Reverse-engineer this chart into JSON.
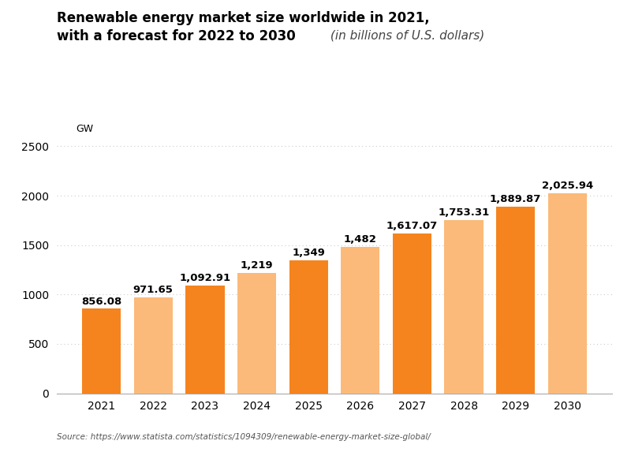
{
  "categories": [
    "2021",
    "2022",
    "2023",
    "2024",
    "2025",
    "2026",
    "2027",
    "2028",
    "2029",
    "2030"
  ],
  "values": [
    856.08,
    971.65,
    1092.91,
    1219,
    1349,
    1482,
    1617.07,
    1753.31,
    1889.87,
    2025.94
  ],
  "value_labels": [
    "856.08",
    "971.65",
    "1,092.91",
    "1,219",
    "1,349",
    "1,482",
    "1,617.07",
    "1,753.31",
    "1,889.87",
    "2,025.94"
  ],
  "bar_colors": [
    "#F5841F",
    "#FBBA7A",
    "#F5841F",
    "#FBBA7A",
    "#F5841F",
    "#FBBA7A",
    "#F5841F",
    "#FBBA7A",
    "#F5841F",
    "#FBBA7A"
  ],
  "title_line1": "Renewable energy market size worldwide in 2021,",
  "title_line2_bold": "with a forecast for 2022 to 2030",
  "title_line2_italic": " (in billions of U.S. dollars)",
  "ylabel": "GW",
  "ylim": [
    0,
    2700
  ],
  "yticks": [
    0,
    500,
    1000,
    1500,
    2000,
    2500
  ],
  "ytick_labels": [
    "0",
    "500",
    "1000",
    "1500",
    "2000",
    "2500"
  ],
  "source_text": "Source: https://www.statista.com/statistics/1094309/renewable-energy-market-size-global/",
  "background_color": "#ffffff",
  "grid_color": "#cccccc",
  "label_fontsize": 9.5,
  "title_fontsize": 12,
  "italic_fontsize": 11
}
